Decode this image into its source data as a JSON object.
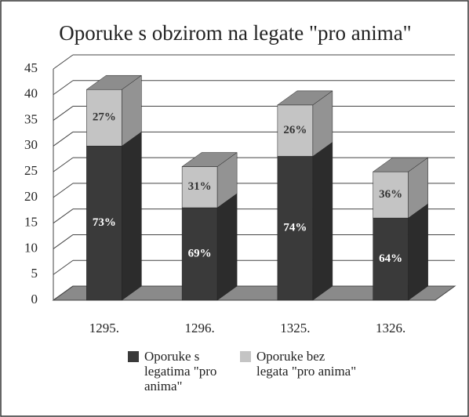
{
  "chart_data": {
    "type": "bar3d_stacked",
    "title": "Oporuke s obzirom na legate \"pro anima\"",
    "categories": [
      "1295.",
      "1296.",
      "1325.",
      "1326."
    ],
    "series": [
      {
        "name": "Oporuke s legatima \"pro anima\"",
        "color": "#3a3a3a",
        "values": [
          30,
          18,
          28,
          16
        ],
        "value_labels": [
          "73%",
          "69%",
          "74%",
          "64%"
        ]
      },
      {
        "name": "Oporuke bez legata \"pro anima\"",
        "color": "#c4c4c4",
        "values": [
          11,
          8,
          10,
          9
        ],
        "value_labels": [
          "27%",
          "31%",
          "26%",
          "36%"
        ]
      }
    ],
    "ylim": [
      0,
      45
    ],
    "yticks": [
      0,
      5,
      10,
      15,
      20,
      25,
      30,
      35,
      40,
      45
    ],
    "grid": true,
    "legend": "bottom"
  }
}
